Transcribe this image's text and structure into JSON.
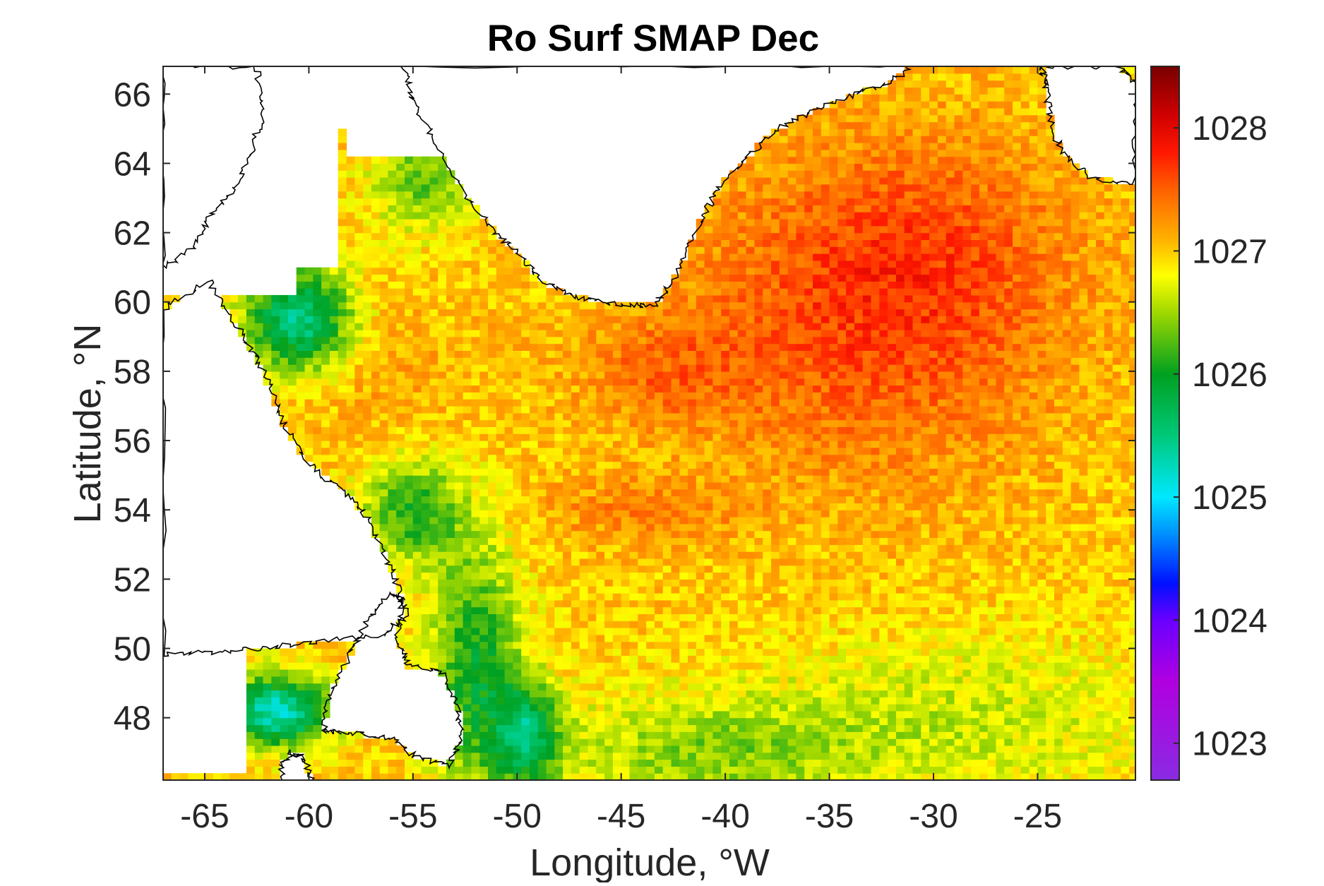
{
  "chart_data": {
    "type": "heatmap",
    "title": "Ro Surf SMAP Dec",
    "xlabel": "Longitude, °W",
    "ylabel": "Latitude, °N",
    "xlim": [
      -67,
      -20.3
    ],
    "ylim": [
      46.2,
      66.8
    ],
    "xticks": [
      -65,
      -60,
      -55,
      -50,
      -45,
      -40,
      -35,
      -30,
      -25
    ],
    "xtick_labels": [
      "-65",
      "-60",
      "-55",
      "-50",
      "-45",
      "-40",
      "-35",
      "-30",
      "-25"
    ],
    "yticks": [
      48,
      50,
      52,
      54,
      56,
      58,
      60,
      62,
      64,
      66
    ],
    "ytick_labels": [
      "48",
      "50",
      "52",
      "54",
      "56",
      "58",
      "60",
      "62",
      "64",
      "66"
    ],
    "colorbar": {
      "range": [
        1022.7,
        1028.5
      ],
      "ticks": [
        1023,
        1024,
        1025,
        1026,
        1027,
        1028
      ],
      "tick_labels": [
        "1023",
        "1024",
        "1025",
        "1026",
        "1027",
        "1028"
      ],
      "colormap": [
        [
          1022.7,
          "#8a2be2"
        ],
        [
          1023.5,
          "#b000e0"
        ],
        [
          1024.0,
          "#6a00ff"
        ],
        [
          1024.3,
          "#0010ff"
        ],
        [
          1024.7,
          "#0090ff"
        ],
        [
          1025.0,
          "#00e8ff"
        ],
        [
          1025.5,
          "#00c878"
        ],
        [
          1026.0,
          "#00a020"
        ],
        [
          1026.5,
          "#a0d800"
        ],
        [
          1026.8,
          "#ffff00"
        ],
        [
          1027.1,
          "#ffb000"
        ],
        [
          1027.5,
          "#ff6000"
        ],
        [
          1027.8,
          "#ff1800"
        ],
        [
          1028.1,
          "#d00000"
        ],
        [
          1028.5,
          "#780000"
        ]
      ]
    },
    "land_color": "#ffffff",
    "coastline_color": "#000000",
    "grid": false
  }
}
